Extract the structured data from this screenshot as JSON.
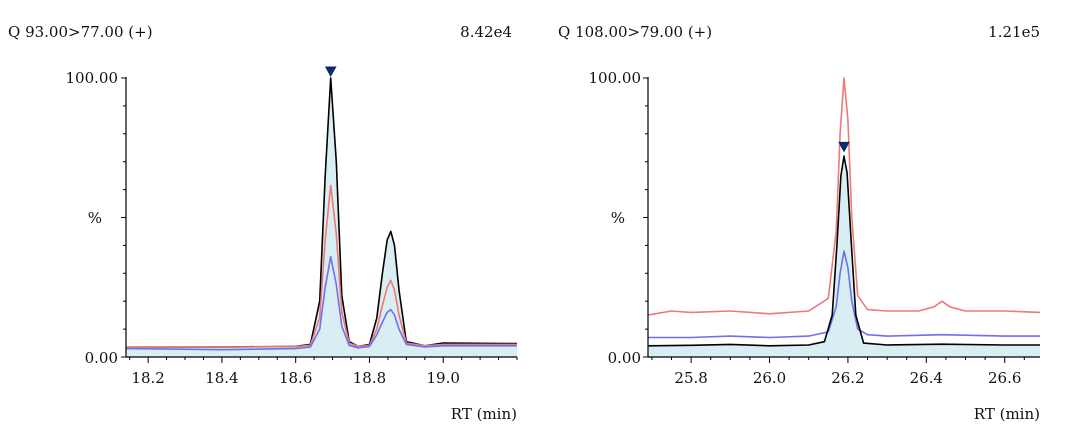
{
  "chart_data": [
    {
      "type": "line",
      "title": "Q 93.00>77.00 (+)",
      "max_intensity": "8.42e4",
      "xlabel": "RT (min)",
      "ylabel": "%",
      "xlim": [
        18.14,
        19.2
      ],
      "ylim": [
        0,
        100
      ],
      "x_ticks": [
        18.2,
        18.4,
        18.6,
        18.8,
        19.0
      ],
      "x_tick_labels": [
        "18.2",
        "18.4",
        "18.6",
        "18.8",
        "19.0"
      ],
      "y_tick_labels": [
        "100.00",
        "%",
        "0.00"
      ],
      "grid": false,
      "marker": {
        "x": 18.695,
        "y": 100,
        "symbol": "down-triangle"
      },
      "series": [
        {
          "color": "#000000",
          "fill": "#d9eef2",
          "x": [
            18.14,
            18.4,
            18.6,
            18.64,
            18.665,
            18.68,
            18.695,
            18.71,
            18.725,
            18.745,
            18.77,
            18.8,
            18.82,
            18.835,
            18.848,
            18.858,
            18.868,
            18.88,
            18.9,
            18.95,
            19.0,
            19.2
          ],
          "y": [
            3.5,
            3.6,
            3.8,
            4.5,
            20.0,
            65.0,
            100.0,
            70.0,
            22.0,
            5.5,
            3.8,
            4.5,
            14.0,
            30.0,
            42.0,
            45.0,
            40.0,
            24.0,
            5.5,
            4.0,
            5.0,
            4.8
          ]
        },
        {
          "color": "#f07878",
          "x": [
            18.14,
            18.4,
            18.6,
            18.64,
            18.665,
            18.68,
            18.695,
            18.71,
            18.725,
            18.745,
            18.77,
            18.8,
            18.82,
            18.835,
            18.848,
            18.858,
            18.868,
            18.88,
            18.9,
            18.95,
            19.0,
            19.2
          ],
          "y": [
            3.5,
            3.6,
            3.7,
            4.2,
            14.0,
            42.0,
            61.5,
            44.0,
            16.0,
            5.0,
            3.8,
            4.2,
            10.0,
            18.5,
            25.0,
            27.5,
            24.0,
            15.0,
            5.0,
            4.0,
            4.5,
            4.5
          ]
        },
        {
          "color": "#6f6ff0",
          "x": [
            18.14,
            18.4,
            18.6,
            18.64,
            18.665,
            18.68,
            18.695,
            18.71,
            18.725,
            18.745,
            18.77,
            18.8,
            18.82,
            18.835,
            18.848,
            18.858,
            18.868,
            18.88,
            18.9,
            18.95,
            19.0,
            19.2
          ],
          "y": [
            3.0,
            2.6,
            3.0,
            3.6,
            10.0,
            25.0,
            36.0,
            26.0,
            11.0,
            4.2,
            3.3,
            3.8,
            8.0,
            12.5,
            16.0,
            17.0,
            15.0,
            10.0,
            4.5,
            3.6,
            4.0,
            4.0
          ]
        }
      ]
    },
    {
      "type": "line",
      "title": "Q 108.00>79.00 (+)",
      "max_intensity": "1.21e5",
      "xlabel": "RT (min)",
      "ylabel": "%",
      "xlim": [
        25.69,
        26.69
      ],
      "ylim": [
        0,
        100
      ],
      "x_ticks": [
        25.8,
        26.0,
        26.2,
        26.4,
        26.6
      ],
      "x_tick_labels": [
        "25.8",
        "26.0",
        "26.2",
        "26.4",
        "26.6"
      ],
      "y_tick_labels": [
        "100.00",
        "%",
        "0.00"
      ],
      "grid": false,
      "marker": {
        "x": 26.19,
        "y": 73,
        "symbol": "down-triangle"
      },
      "series": [
        {
          "color": "#f07878",
          "x": [
            25.69,
            25.75,
            25.8,
            25.9,
            26.0,
            26.1,
            26.15,
            26.17,
            26.18,
            26.19,
            26.2,
            26.21,
            26.225,
            26.25,
            26.3,
            26.38,
            26.42,
            26.44,
            26.46,
            26.5,
            26.6,
            26.69
          ],
          "y": [
            15.0,
            16.5,
            16.0,
            16.5,
            15.5,
            16.5,
            21.0,
            45.0,
            80.0,
            100.0,
            85.0,
            50.0,
            22.0,
            17.0,
            16.5,
            16.5,
            18.0,
            20.0,
            18.0,
            16.5,
            16.5,
            16.0
          ]
        },
        {
          "color": "#6f6ff0",
          "x": [
            25.69,
            25.8,
            25.9,
            26.0,
            26.1,
            26.15,
            26.17,
            26.18,
            26.19,
            26.2,
            26.21,
            26.225,
            26.25,
            26.3,
            26.44,
            26.6,
            26.69
          ],
          "y": [
            7.0,
            7.0,
            7.5,
            7.0,
            7.5,
            9.0,
            18.0,
            30.0,
            38.0,
            32.0,
            20.0,
            10.0,
            8.0,
            7.5,
            8.0,
            7.5,
            7.5
          ]
        },
        {
          "color": "#000000",
          "fill": "#d9eef2",
          "x": [
            25.69,
            25.8,
            25.9,
            26.0,
            26.1,
            26.14,
            26.16,
            26.172,
            26.182,
            26.19,
            26.198,
            26.208,
            26.22,
            26.24,
            26.3,
            26.44,
            26.6,
            26.69
          ],
          "y": [
            4.0,
            4.2,
            4.5,
            4.0,
            4.3,
            5.5,
            15.0,
            40.0,
            65.0,
            72.0,
            66.0,
            42.0,
            15.0,
            5.0,
            4.3,
            4.6,
            4.3,
            4.3
          ]
        }
      ]
    }
  ]
}
